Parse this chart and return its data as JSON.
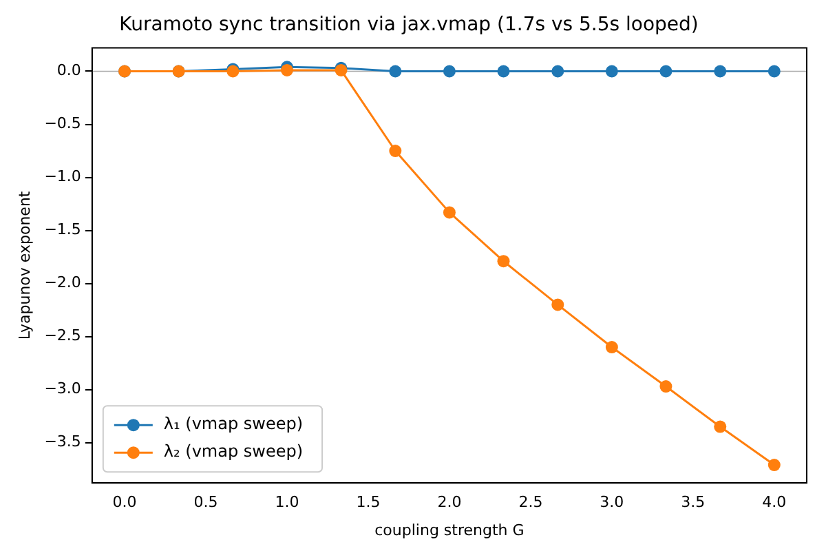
{
  "chart_data": {
    "type": "line",
    "title": "Kuramoto sync transition via jax.vmap (1.7s vs 5.5s looped)",
    "xlabel": "coupling strength G",
    "ylabel": "Lyapunov exponent",
    "x": [
      0,
      0.333,
      0.667,
      1,
      1.333,
      1.667,
      2,
      2.333,
      2.667,
      3,
      3.333,
      3.667,
      4
    ],
    "series": [
      {
        "name": "λ₁ (vmap sweep)",
        "color": "#1f77b4",
        "values": [
          0,
          0,
          0.02,
          0.04,
          0.03,
          0,
          0,
          0,
          0,
          0,
          0,
          0,
          0
        ]
      },
      {
        "name": "λ₂ (vmap sweep)",
        "color": "#ff7f0e",
        "values": [
          0,
          0,
          0,
          0.01,
          0.01,
          -0.75,
          -1.33,
          -1.79,
          -2.2,
          -2.6,
          -2.97,
          -3.35,
          -3.71
        ]
      }
    ],
    "xlim": [
      -0.2,
      4.2
    ],
    "ylim": [
      -3.88,
      0.22
    ],
    "xticks": [
      {
        "value": 0,
        "label": "0.0"
      },
      0.5,
      {
        "value": 1,
        "label": "1.0"
      },
      1.5,
      {
        "value": 2,
        "label": "2.0"
      },
      2.5,
      {
        "value": 3,
        "label": "3.0"
      },
      3.5,
      {
        "value": 4,
        "label": "4.0"
      }
    ],
    "yticks": [
      {
        "value": 0,
        "label": "0.0"
      },
      {
        "value": -0.5,
        "label": "−0.5"
      },
      {
        "value": -1,
        "label": "−1.0"
      },
      {
        "value": -1.5,
        "label": "−1.5"
      },
      {
        "value": -2,
        "label": "−2.0"
      },
      {
        "value": -2.5,
        "label": "−2.5"
      },
      {
        "value": -3,
        "label": "−3.0"
      },
      {
        "value": -3.5,
        "label": "−3.5"
      }
    ],
    "ref_lines": [
      {
        "axis": "y",
        "value": 0,
        "color": "#aaaaaa"
      }
    ],
    "marker": "circle",
    "line_style": "solid",
    "legend": "bottom left",
    "grid": false
  }
}
